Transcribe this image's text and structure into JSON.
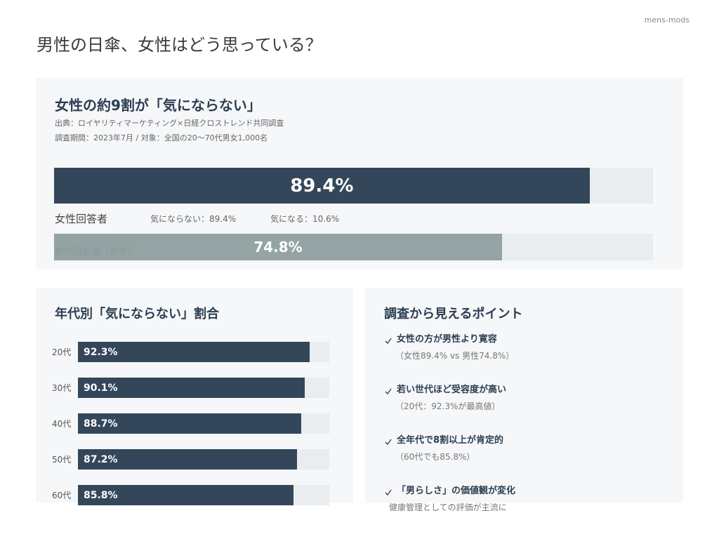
{
  "brand": "mens-mods",
  "title": "男性の日傘、女性はどう思っている？",
  "main": {
    "heading": "女性の約9割が「気にならない」",
    "source": "出典：ロイヤリティマーケティング×日経クロストレンド共同調査",
    "period": "調査期間：2023年7月 / 対象：全国の20〜70代男女1,000名",
    "notes": [
      "気にならない：89.4%",
      "気になる：10.6%"
    ]
  },
  "chart_data": [
    {
      "type": "progress",
      "categories": [
        "女性回答者",
        "男性回答者（参考）"
      ],
      "values": [
        89.4,
        74.8
      ],
      "value_labels": [
        "89.4%",
        "74.8%"
      ],
      "xlim": [
        0,
        100
      ],
      "colors": [
        "#34465a",
        "#94a3a3"
      ]
    },
    {
      "type": "bar",
      "title": "年代別「気にならない」割合",
      "categories": [
        "20代",
        "30代",
        "40代",
        "50代",
        "60代"
      ],
      "values": [
        92.3,
        90.1,
        88.7,
        87.2,
        85.8
      ],
      "value_labels": [
        "92.3%",
        "90.1%",
        "88.7%",
        "87.2%",
        "85.8%"
      ],
      "xlim": [
        0,
        100
      ],
      "color": "#34465a"
    }
  ],
  "points": {
    "title": "調査から見えるポイント",
    "items": [
      {
        "heading": "女性の方が男性より寛容",
        "detail": "（女性89.4% vs 男性74.8%）"
      },
      {
        "heading": "若い世代ほど受容度が高い",
        "detail": "（20代：92.3%が最高値）"
      },
      {
        "heading": "全年代で8割以上が肯定的",
        "detail": "（60代でも85.8%）"
      },
      {
        "heading": "「男らしさ」の価値観が変化",
        "detail": "健康管理としての評価が主流に"
      }
    ]
  }
}
